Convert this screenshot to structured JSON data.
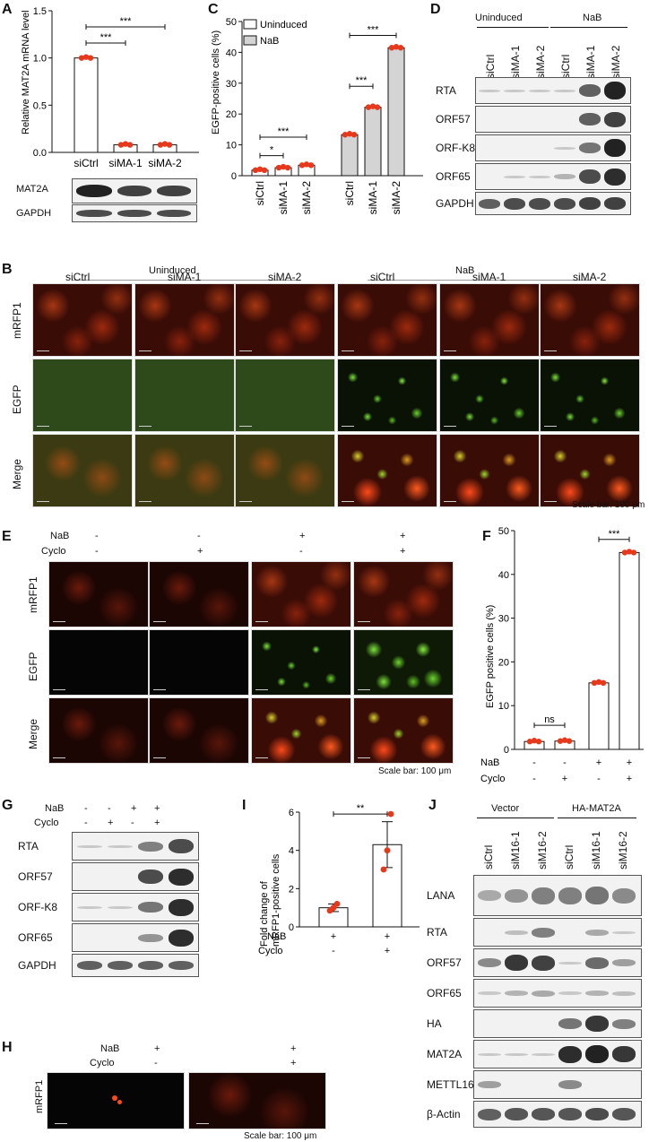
{
  "panels": {
    "A": "A",
    "B": "B",
    "C": "C",
    "D": "D",
    "E": "E",
    "F": "F",
    "G": "G",
    "H": "H",
    "I": "I",
    "J": "J"
  },
  "panelA": {
    "ylabel": "Relative MAT2A mRNA level",
    "blot_labels": [
      "MAT2A",
      "GAPDH"
    ],
    "sig": [
      "***",
      "***"
    ]
  },
  "panelC": {
    "ylabel": "EGFP-positive cells (%)",
    "legend": [
      "Uninduced",
      "NaB"
    ],
    "sig": [
      "*",
      "***",
      "***",
      "***"
    ]
  },
  "panelD": {
    "group_labels": [
      "Uninduced",
      "NaB"
    ],
    "lanes": [
      "siCtrl",
      "siMA-1",
      "siMA-2",
      "siCtrl",
      "siMA-1",
      "siMA-2"
    ],
    "rows": [
      "RTA",
      "ORF57",
      "ORF-K8",
      "ORF65",
      "GAPDH"
    ]
  },
  "panelB": {
    "group_labels": [
      "Uninduced",
      "NaB"
    ],
    "cols": [
      "siCtrl",
      "siMA-1",
      "siMA-2",
      "siCtrl",
      "siMA-1",
      "siMA-2"
    ],
    "rows": [
      "mRFP1",
      "EGFP",
      "Merge"
    ],
    "scale": "Scale bar: 100 μm"
  },
  "panelE": {
    "treat_labels": [
      "NaB",
      "Cyclo"
    ],
    "nab": [
      "-",
      "-",
      "+",
      "+"
    ],
    "cyclo": [
      "-",
      "+",
      "-",
      "+"
    ],
    "rows": [
      "mRFP1",
      "EGFP",
      "Merge"
    ],
    "scale": "Scale bar: 100 μm"
  },
  "panelF": {
    "ylabel": "EGFP positive cells (%)",
    "treat_labels": [
      "NaB",
      "Cyclo"
    ],
    "nab": [
      "-",
      "-",
      "+",
      "+"
    ],
    "cyclo": [
      "-",
      "+",
      "-",
      "+"
    ],
    "sig": [
      "ns",
      "***"
    ]
  },
  "panelG": {
    "treat_labels": [
      "NaB",
      "Cyclo"
    ],
    "nab": [
      "-",
      "-",
      "+",
      "+"
    ],
    "cyclo": [
      "-",
      "+",
      "-",
      "+"
    ],
    "rows": [
      "RTA",
      "ORF57",
      "ORF-K8",
      "ORF65",
      "GAPDH"
    ]
  },
  "panelH": {
    "treat_labels": [
      "NaB",
      "Cyclo"
    ],
    "nab": [
      "+",
      "+"
    ],
    "cyclo": [
      "-",
      "+"
    ],
    "row": "mRFP1",
    "scale": "Scale bar: 100 μm"
  },
  "panelI": {
    "ylabel": "Fold change of mRFP1-positive cells",
    "treat_labels": [
      "NaB",
      "Cyclo"
    ],
    "nab": [
      "+",
      "+"
    ],
    "cyclo": [
      "-",
      "+"
    ],
    "sig": "**"
  },
  "panelJ": {
    "group_labels": [
      "Vector",
      "HA-MAT2A"
    ],
    "lanes": [
      "siCtrl",
      "siM16-1",
      "siM16-2",
      "siCtrl",
      "siM16-1",
      "siM16-2"
    ],
    "rows": [
      "LANA",
      "RTA",
      "ORF57",
      "ORF65",
      "HA",
      "MAT2A",
      "METTL16",
      "β-Actin"
    ]
  },
  "chart_data": [
    {
      "type": "bar",
      "panel": "A",
      "categories": [
        "siCtrl",
        "siMA-1",
        "siMA-2"
      ],
      "values": [
        1.0,
        0.08,
        0.08
      ],
      "ylim": [
        0,
        1.5
      ],
      "yticks": [
        "0.0",
        "0.5",
        "1.0",
        "1.5"
      ]
    },
    {
      "type": "bar",
      "panel": "C",
      "categories": [
        "siCtrl",
        "siMA-1",
        "siMA-2"
      ],
      "series": [
        {
          "name": "Uninduced",
          "values": [
            1.8,
            2.6,
            3.4
          ]
        },
        {
          "name": "NaB",
          "values": [
            13.3,
            22.2,
            41.5
          ]
        }
      ],
      "ylim": [
        0,
        50
      ],
      "yticks": [
        "0",
        "10",
        "20",
        "30",
        "40",
        "50"
      ]
    },
    {
      "type": "bar",
      "panel": "F",
      "categories": [
        "1",
        "2",
        "3",
        "4"
      ],
      "values": [
        1.8,
        1.9,
        15.2,
        45.0
      ],
      "ylim": [
        0,
        50
      ],
      "yticks": [
        "0",
        "10",
        "20",
        "30",
        "40",
        "50"
      ]
    },
    {
      "type": "bar",
      "panel": "I",
      "categories": [
        "1",
        "2"
      ],
      "values": [
        1.0,
        4.3
      ],
      "errors": [
        0.2,
        1.2
      ],
      "points": [
        [
          0.85,
          1.0,
          1.2
        ],
        [
          3.0,
          4.0,
          5.9
        ]
      ],
      "ylim": [
        0,
        6
      ],
      "yticks": [
        "0",
        "2",
        "4",
        "6"
      ]
    }
  ],
  "colors": {
    "point": "#e8381c",
    "nab_bar": "#d4d4d4",
    "bar": "#ffffff",
    "line": "#111111"
  }
}
